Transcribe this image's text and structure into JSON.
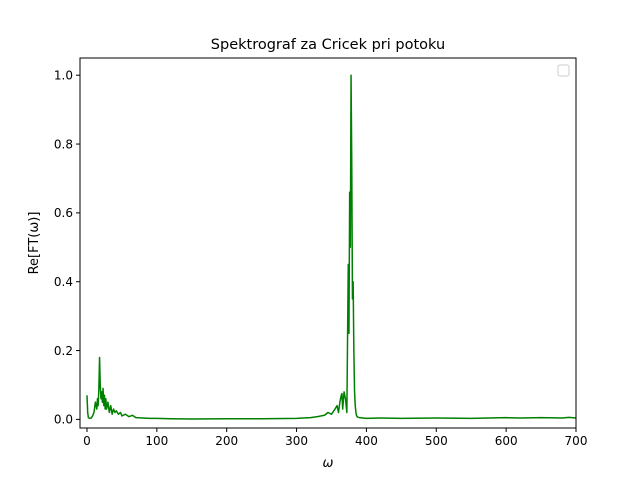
{
  "chart_data": {
    "type": "line",
    "title": "Spektrograf za Cricek pri potoku",
    "xlabel": "ω",
    "ylabel": "Re[FT(ω)]",
    "xlim": [
      -10,
      700
    ],
    "ylim": [
      -0.025,
      1.05
    ],
    "xticks": [
      0,
      100,
      200,
      300,
      400,
      500,
      600,
      700
    ],
    "yticks": [
      0.0,
      0.2,
      0.4,
      0.6,
      0.8,
      1.0
    ],
    "xtick_labels": [
      "0",
      "100",
      "200",
      "300",
      "400",
      "500",
      "600",
      "700"
    ],
    "ytick_labels": [
      "0.0",
      "0.2",
      "0.4",
      "0.6",
      "0.8",
      "1.0"
    ],
    "grid": false,
    "legend": {
      "placement": "top-right",
      "entries": []
    },
    "series": [
      {
        "color": "#008000",
        "x": [
          0,
          1,
          2,
          4,
          6,
          8,
          10,
          12,
          14,
          15,
          16,
          17,
          18,
          19,
          20,
          21,
          22,
          23,
          24,
          25,
          26,
          27,
          28,
          30,
          32,
          34,
          36,
          38,
          40,
          42,
          45,
          48,
          50,
          55,
          60,
          65,
          70,
          80,
          90,
          100,
          120,
          150,
          200,
          250,
          300,
          320,
          330,
          340,
          345,
          350,
          355,
          358,
          360,
          362,
          364,
          365,
          366,
          368,
          370,
          372,
          374,
          375,
          376,
          377,
          378,
          379,
          380,
          381,
          382,
          383,
          384,
          385,
          386,
          388,
          390,
          395,
          400,
          420,
          450,
          500,
          550,
          600,
          620,
          650,
          680,
          690,
          700
        ],
        "y": [
          0.07,
          0.02,
          0.005,
          0.003,
          0.004,
          0.01,
          0.02,
          0.05,
          0.03,
          0.06,
          0.04,
          0.09,
          0.18,
          0.1,
          0.06,
          0.08,
          0.05,
          0.09,
          0.04,
          0.07,
          0.03,
          0.06,
          0.03,
          0.05,
          0.02,
          0.04,
          0.015,
          0.03,
          0.02,
          0.025,
          0.015,
          0.02,
          0.01,
          0.015,
          0.008,
          0.012,
          0.005,
          0.004,
          0.003,
          0.003,
          0.002,
          0.001,
          0.002,
          0.002,
          0.003,
          0.005,
          0.008,
          0.012,
          0.02,
          0.015,
          0.03,
          0.04,
          0.02,
          0.05,
          0.07,
          0.075,
          0.03,
          0.08,
          0.06,
          0.02,
          0.45,
          0.25,
          0.66,
          0.5,
          1.0,
          0.75,
          0.35,
          0.4,
          0.2,
          0.08,
          0.04,
          0.02,
          0.01,
          0.006,
          0.005,
          0.004,
          0.003,
          0.004,
          0.003,
          0.004,
          0.003,
          0.005,
          0.004,
          0.005,
          0.004,
          0.006,
          0.004
        ]
      }
    ]
  }
}
